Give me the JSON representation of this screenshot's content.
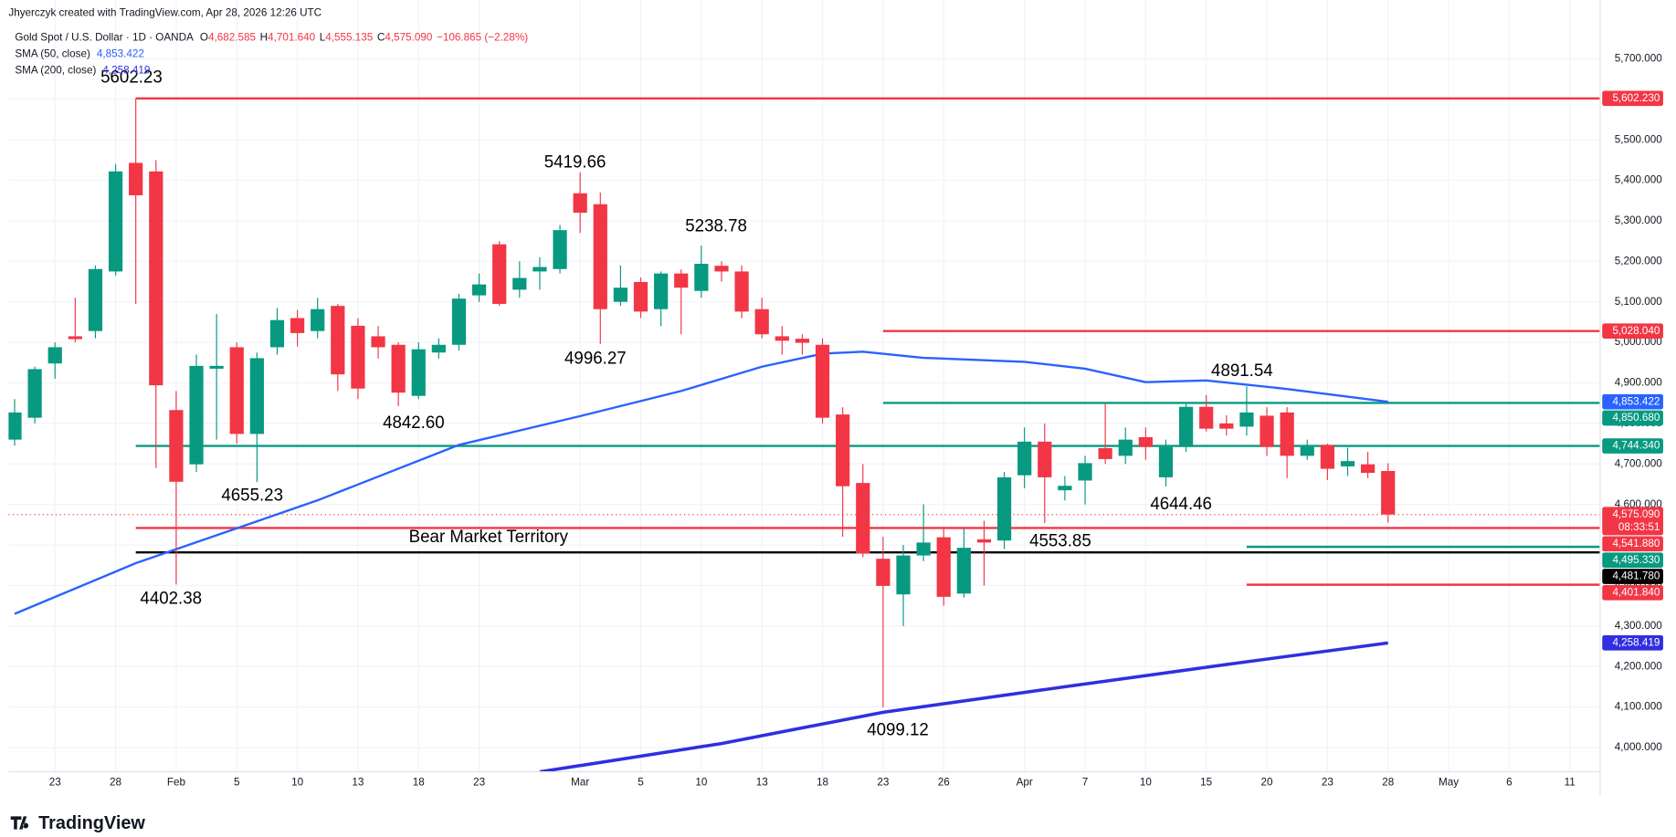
{
  "header": {
    "credit": "Jhyerczyk created with TradingView.com, Apr 28, 2026 12:26 UTC",
    "symbol": "Gold Spot / U.S. Dollar · 1D · OANDA",
    "ohlc": [
      {
        "label": "O",
        "value": "4,682.585"
      },
      {
        "label": "H",
        "value": "4,701.640"
      },
      {
        "label": "L",
        "value": "4,555.135"
      },
      {
        "label": "C",
        "value": "4,575.090"
      }
    ],
    "change": "−106.865 (−2.28%)"
  },
  "footer": "TradingView",
  "chart_data": {
    "type": "candlestick",
    "up_color": "#089981",
    "down_color": "#f23645",
    "open": [
      4760,
      4814,
      4948,
      5015,
      5028,
      5175,
      5443,
      5422,
      4833,
      4699,
      4935,
      4988,
      4774,
      4988,
      5060,
      5028,
      5090,
      5041,
      5015,
      4994,
      4868,
      4975,
      4994,
      5116,
      5242,
      5130,
      5175,
      5181,
      5368,
      5341,
      5100,
      5149,
      5082,
      5170,
      5127,
      5189,
      5175,
      5082,
      5015,
      5009,
      4994,
      4822,
      4653,
      4466,
      4378,
      4474,
      4519,
      4380,
      4514,
      4511,
      4672,
      4755,
      4635,
      4659,
      4739,
      4720,
      4766,
      4667,
      4742,
      4841,
      4800,
      4792,
      4819,
      4827,
      4720,
      4747,
      4694,
      4699,
      4682.585
    ],
    "high": [
      4860,
      4940,
      5000,
      5110,
      5190,
      5440,
      5602.23,
      5450,
      4880,
      4970,
      5070,
      5000,
      4975,
      5085,
      5080,
      5110,
      5095,
      5060,
      5040,
      5000,
      5000,
      5010,
      5120,
      5170,
      5250,
      5200,
      5210,
      5290,
      5419.66,
      5370,
      5190,
      5160,
      5175,
      5180,
      5238.78,
      5200,
      5190,
      5110,
      5040,
      5020,
      5010,
      4840,
      4700,
      4520,
      4500,
      4600,
      4540,
      4540,
      4560,
      4680,
      4790,
      4800,
      4670,
      4720,
      4850,
      4790,
      4790,
      4760,
      4850,
      4870,
      4820,
      4891.54,
      4840,
      4840,
      4760,
      4750,
      4740,
      4730,
      4701.64
    ],
    "low": [
      4745,
      4800,
      4910,
      5000,
      5010,
      5165,
      5095,
      4690,
      4402.38,
      4680,
      4760,
      4750,
      4655.23,
      4970,
      4990,
      5010,
      4880,
      4860,
      4960,
      4842.6,
      4860,
      4960,
      4980,
      5100,
      5090,
      5110,
      5130,
      5170,
      5270,
      4996.27,
      5090,
      5060,
      5040,
      5020,
      5110,
      5150,
      5060,
      5010,
      4970,
      4970,
      4800,
      4520,
      4470,
      4099.12,
      4300,
      4460,
      4350,
      4370,
      4400,
      4490,
      4640,
      4553.85,
      4610,
      4600,
      4700,
      4700,
      4710,
      4644.46,
      4730,
      4780,
      4770,
      4770,
      4720,
      4665,
      4710,
      4660,
      4670,
      4665,
      4555.135
    ],
    "close": [
      4827,
      4934,
      4988,
      5008,
      5181,
      5422,
      5363,
      4894,
      4656,
      4942,
      4942,
      4774,
      4961,
      5055,
      5023,
      5082,
      4921,
      4886,
      4988,
      4876,
      4983,
      4994,
      5108,
      5143,
      5095,
      5159,
      5186,
      5277,
      5320,
      5082,
      5135,
      5076,
      5170,
      5135,
      5194,
      5175,
      5076,
      5020,
      5004,
      4999,
      4814,
      4645,
      4479,
      4399,
      4474,
      4506,
      4372,
      4493,
      4506,
      4667,
      4755,
      4667,
      4646,
      4702,
      4712,
      4760,
      4742,
      4742,
      4841,
      4787,
      4787,
      4827,
      4742,
      4720,
      4742,
      4688,
      4707,
      4678,
      4575.09
    ],
    "series": [
      {
        "name": "SMA (50, close)",
        "color": "#2962ff",
        "last_label": "4,853.422",
        "x": [
          0,
          6,
          15,
          22,
          28,
          33,
          37,
          40,
          42,
          45,
          50,
          53,
          56,
          59,
          63,
          68
        ],
        "values": [
          4330,
          4455,
          4610,
          4747,
          4818,
          4880,
          4940,
          4972,
          4977,
          4962,
          4952,
          4935,
          4902,
          4906,
          4885,
          4853.422
        ]
      },
      {
        "name": "SMA (200, close)",
        "color": "#2f2fe0",
        "last_label": "4,258.419",
        "x": [
          26,
          35,
          43,
          52,
          60,
          68
        ],
        "values": [
          3940,
          4010,
          4087,
          4150,
          4205,
          4258.419
        ]
      }
    ],
    "last_price": {
      "label": "4,575.090",
      "countdown": "08:33:51"
    },
    "levels": [
      {
        "value": 5602.23,
        "label": "5,602.230",
        "color": "#f23645",
        "start": 6
      },
      {
        "value": 5028.04,
        "label": "5,028.040",
        "color": "#f23645",
        "start": 43
      },
      {
        "value": 4850.68,
        "label": "4,850.680",
        "color": "#089981",
        "start": 43
      },
      {
        "value": 4744.34,
        "label": "4,744.340",
        "color": "#089981",
        "start": 6
      },
      {
        "value": 4541.88,
        "label": "4,541.880",
        "color": "#f23645",
        "start": 6
      },
      {
        "value": 4495.33,
        "label": "4,495.330",
        "color": "#089981",
        "start": 61
      },
      {
        "value": 4481.78,
        "label": "4,481.780",
        "color": "#000000",
        "start": 6
      },
      {
        "value": 4401.84,
        "label": "4,401.840",
        "color": "#f23645",
        "start": 61
      }
    ],
    "annotations": [
      "5602.23",
      "5419.66",
      "5238.78",
      "4996.27",
      "4842.60",
      "4655.23",
      "4402.38",
      "4099.12",
      "4553.85",
      "4644.46",
      "4891.54",
      "Bear Market Territory"
    ],
    "xlim": [
      -0.3,
      78.5
    ],
    "xticks": [
      {
        "value": 2,
        "label": "23"
      },
      {
        "value": 5,
        "label": "28"
      },
      {
        "value": 8,
        "label": "Feb"
      },
      {
        "value": 11,
        "label": "5"
      },
      {
        "value": 14,
        "label": "10"
      },
      {
        "value": 17,
        "label": "13"
      },
      {
        "value": 20,
        "label": "18"
      },
      {
        "value": 23,
        "label": "23"
      },
      {
        "value": 28,
        "label": "Mar"
      },
      {
        "value": 31,
        "label": "5"
      },
      {
        "value": 34,
        "label": "10"
      },
      {
        "value": 37,
        "label": "13"
      },
      {
        "value": 40,
        "label": "18"
      },
      {
        "value": 43,
        "label": "23"
      },
      {
        "value": 46,
        "label": "26"
      },
      {
        "value": 50,
        "label": "Apr"
      },
      {
        "value": 53,
        "label": "7"
      },
      {
        "value": 56,
        "label": "10"
      },
      {
        "value": 59,
        "label": "15"
      },
      {
        "value": 62,
        "label": "20"
      },
      {
        "value": 65,
        "label": "23"
      },
      {
        "value": 68,
        "label": "28"
      },
      {
        "value": 71,
        "label": "May"
      },
      {
        "value": 74,
        "label": "6"
      },
      {
        "value": 77,
        "label": "11"
      }
    ],
    "ylim": [
      3940,
      5845
    ],
    "yticks": [
      {
        "value": 4000,
        "label": "4,000.000"
      },
      {
        "value": 4100,
        "label": "4,100.000"
      },
      {
        "value": 4200,
        "label": "4,200.000"
      },
      {
        "value": 4300,
        "label": "4,300.000"
      },
      {
        "value": 4400,
        "label": "4,400.000"
      },
      {
        "value": 4500,
        "label": "4,500.000"
      },
      {
        "value": 4600,
        "label": "4,600.000"
      },
      {
        "value": 4700,
        "label": "4,700.000"
      },
      {
        "value": 4800,
        "label": "4,800.000"
      },
      {
        "value": 4900,
        "label": "4,900.000"
      },
      {
        "value": 5000,
        "label": "5,000.000"
      },
      {
        "value": 5100,
        "label": "5,100.000"
      },
      {
        "value": 5200,
        "label": "5,200.000"
      },
      {
        "value": 5300,
        "label": "5,300.000"
      },
      {
        "value": 5400,
        "label": "5,400.000"
      },
      {
        "value": 5500,
        "label": "5,500.000"
      },
      {
        "value": 5600,
        "label": "5,600.000"
      },
      {
        "value": 5700,
        "label": "5,700.000"
      }
    ],
    "grid": true
  }
}
